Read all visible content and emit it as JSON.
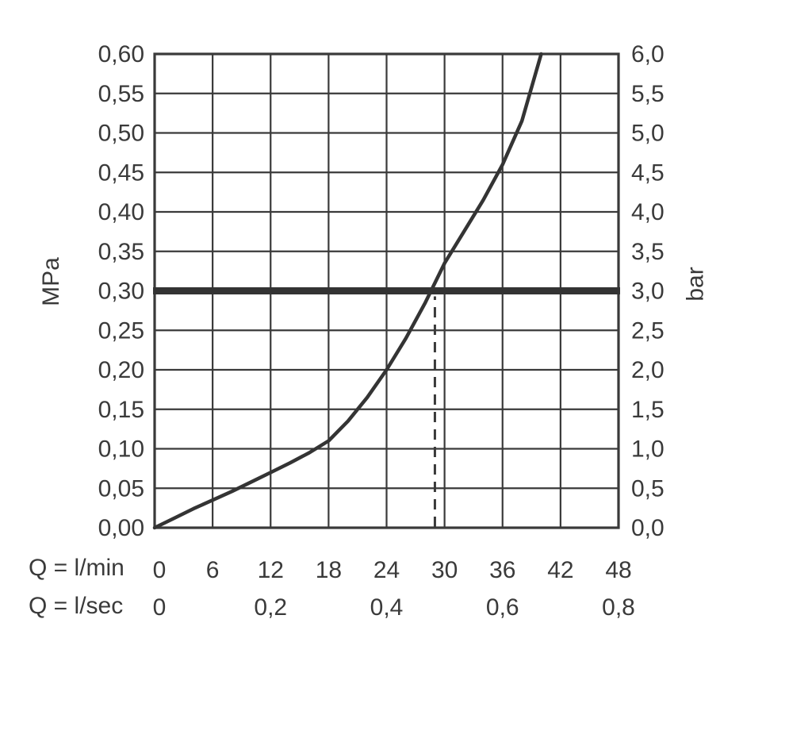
{
  "chart_data": {
    "type": "line",
    "grid": true,
    "colors": {
      "ink": "#3a3a3a",
      "grid": "#3a3a3a",
      "curve": "#343434",
      "reference_line": "#333333",
      "background": "#ffffff"
    },
    "left_axis": {
      "label": "MPa",
      "min": 0,
      "max": 0.6,
      "step": 0.05,
      "values": [
        0.6,
        0.55,
        0.5,
        0.45,
        0.4,
        0.35,
        0.3,
        0.25,
        0.2,
        0.15,
        0.1,
        0.05,
        0.0
      ],
      "tick_labels": [
        "0,60",
        "0,55",
        "0,50",
        "0,45",
        "0,40",
        "0,35",
        "0,30",
        "0,25",
        "0,20",
        "0,15",
        "0,10",
        "0,05",
        "0,00"
      ]
    },
    "right_axis": {
      "label": "bar",
      "min": 0,
      "max": 6.0,
      "step": 0.5,
      "values": [
        6.0,
        5.5,
        5.0,
        4.5,
        4.0,
        3.5,
        3.0,
        2.5,
        2.0,
        1.5,
        1.0,
        0.5,
        0.0
      ],
      "tick_labels": [
        "6,0",
        "5,5",
        "5,0",
        "4,5",
        "4,0",
        "3,5",
        "3,0",
        "2,5",
        "2,0",
        "1,5",
        "1,0",
        "0,5",
        "0,0"
      ]
    },
    "x_axis_lmin": {
      "label": "Q = l/min",
      "min": 0,
      "max": 48,
      "step": 6,
      "values": [
        0,
        6,
        12,
        18,
        24,
        30,
        36,
        42,
        48
      ],
      "tick_labels": [
        "0",
        "6",
        "12",
        "18",
        "24",
        "30",
        "36",
        "42",
        "48"
      ]
    },
    "x_axis_lsec": {
      "label": "Q = l/sec",
      "values": [
        0,
        12,
        24,
        36,
        48
      ],
      "tick_labels": [
        "0",
        "0,2",
        "0,4",
        "0,6",
        "0,8"
      ]
    },
    "series": [
      {
        "name": "flow-pressure-curve",
        "x": [
          0,
          2,
          4,
          6,
          8,
          10,
          12,
          14,
          16,
          18,
          20,
          22,
          24,
          26,
          28,
          30,
          32,
          34,
          36,
          38,
          40
        ],
        "y": [
          0.0,
          0.012,
          0.024,
          0.035,
          0.046,
          0.058,
          0.07,
          0.082,
          0.095,
          0.11,
          0.135,
          0.165,
          0.2,
          0.24,
          0.285,
          0.335,
          0.375,
          0.415,
          0.46,
          0.515,
          0.6
        ]
      }
    ],
    "reference_line_mpa": 0.3,
    "dashed_marker": {
      "x_lmin": 29,
      "to_mpa": 0.3
    }
  }
}
